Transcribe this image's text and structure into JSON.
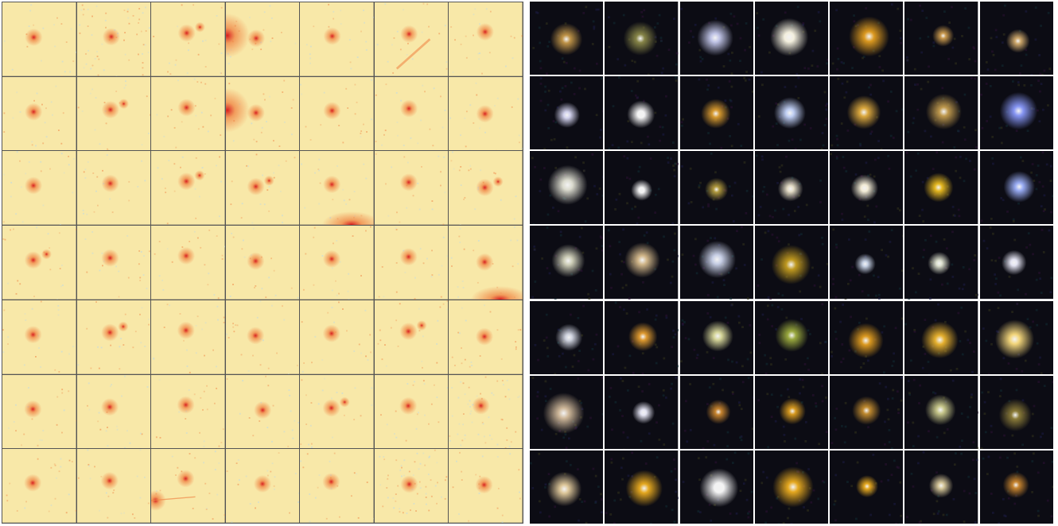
{
  "left_panel": {
    "grid": {
      "rows": 7,
      "cols": 7
    },
    "colors": {
      "background": "#f8e8a8",
      "core": "#d81f1f",
      "halo": "#f08a4a",
      "noise_cool": "#bcd9e6"
    },
    "thumbnails": [
      {
        "feature": "point-source"
      },
      {
        "feature": "point-source-noisy"
      },
      {
        "feature": "point-source-with-companion"
      },
      {
        "feature": "bright-edge-source"
      },
      {
        "feature": "point-source"
      },
      {
        "feature": "streak"
      },
      {
        "feature": "point-source"
      },
      {
        "feature": "point-source"
      },
      {
        "feature": "double-source"
      },
      {
        "feature": "point-source"
      },
      {
        "feature": "edge-glow"
      },
      {
        "feature": "point-source"
      },
      {
        "feature": "point-source"
      },
      {
        "feature": "point-source"
      },
      {
        "feature": "point-source"
      },
      {
        "feature": "point-source"
      },
      {
        "feature": "double-source"
      },
      {
        "feature": "extended-pair"
      },
      {
        "feature": "point-source-bottom-glow"
      },
      {
        "feature": "point-source"
      },
      {
        "feature": "extended-pair"
      },
      {
        "feature": "double-source"
      },
      {
        "feature": "point-source"
      },
      {
        "feature": "point-source"
      },
      {
        "feature": "point-source"
      },
      {
        "feature": "point-source"
      },
      {
        "feature": "point-source"
      },
      {
        "feature": "point-source-bottom-glow"
      },
      {
        "feature": "point-source"
      },
      {
        "feature": "double-source"
      },
      {
        "feature": "point-source"
      },
      {
        "feature": "point-source"
      },
      {
        "feature": "point-source"
      },
      {
        "feature": "double-source"
      },
      {
        "feature": "point-source"
      },
      {
        "feature": "point-source"
      },
      {
        "feature": "point-source"
      },
      {
        "feature": "point-source"
      },
      {
        "feature": "point-source"
      },
      {
        "feature": "double-source"
      },
      {
        "feature": "point-source"
      },
      {
        "feature": "point-source-noisy"
      },
      {
        "feature": "point-source"
      },
      {
        "feature": "point-source"
      },
      {
        "feature": "corner-cross"
      },
      {
        "feature": "point-source"
      },
      {
        "feature": "point-source"
      },
      {
        "feature": "point-source-noisy"
      },
      {
        "feature": "point-source"
      }
    ]
  },
  "right_panel": {
    "grid": {
      "rows": 7,
      "cols": 7
    },
    "colors": {
      "background": "#0c0c14",
      "border": "#ffffff"
    },
    "thumbnails": [
      {
        "color": "#c89a4a"
      },
      {
        "color": "#8c8a4a"
      },
      {
        "color": "#c8ccf0"
      },
      {
        "color": "#fffbe8"
      },
      {
        "color": "#e6a020"
      },
      {
        "color": "#d2a050"
      },
      {
        "color": "#d8b070"
      },
      {
        "color": "#dcdcf8"
      },
      {
        "color": "#ffffff"
      },
      {
        "color": "#e0a030"
      },
      {
        "color": "#c8d8ff"
      },
      {
        "color": "#e6b040"
      },
      {
        "color": "#c8a050"
      },
      {
        "color": "#8c9cff"
      },
      {
        "color": "#e6e6d8"
      },
      {
        "color": "#ffffff"
      },
      {
        "color": "#b8a040"
      },
      {
        "color": "#f0e8d0"
      },
      {
        "color": "#fff8e0"
      },
      {
        "color": "#f0c020"
      },
      {
        "color": "#a0b4ff"
      },
      {
        "color": "#d8d8c0"
      },
      {
        "color": "#dcc090"
      },
      {
        "color": "#d0d8f0"
      },
      {
        "color": "#c8a020"
      },
      {
        "color": "#d0dcf0"
      },
      {
        "color": "#e8ecd8"
      },
      {
        "color": "#f0f0ff"
      },
      {
        "color": "#d8dce8"
      },
      {
        "color": "#e8a030"
      },
      {
        "color": "#e0e0a0"
      },
      {
        "color": "#a0b040"
      },
      {
        "color": "#e6a020"
      },
      {
        "color": "#f0b830"
      },
      {
        "color": "#ffe080"
      },
      {
        "color": "#d8c0a0"
      },
      {
        "color": "#f0f0ff"
      },
      {
        "color": "#d08a30"
      },
      {
        "color": "#e0a020"
      },
      {
        "color": "#c89030"
      },
      {
        "color": "#d0d090"
      },
      {
        "color": "#90803a"
      },
      {
        "color": "#e8d0a0"
      },
      {
        "color": "#f0b020"
      },
      {
        "color": "#ffffff"
      },
      {
        "color": "#f0b020"
      },
      {
        "color": "#f0b020"
      },
      {
        "color": "#e0d0a0"
      },
      {
        "color": "#d08a30"
      }
    ]
  }
}
